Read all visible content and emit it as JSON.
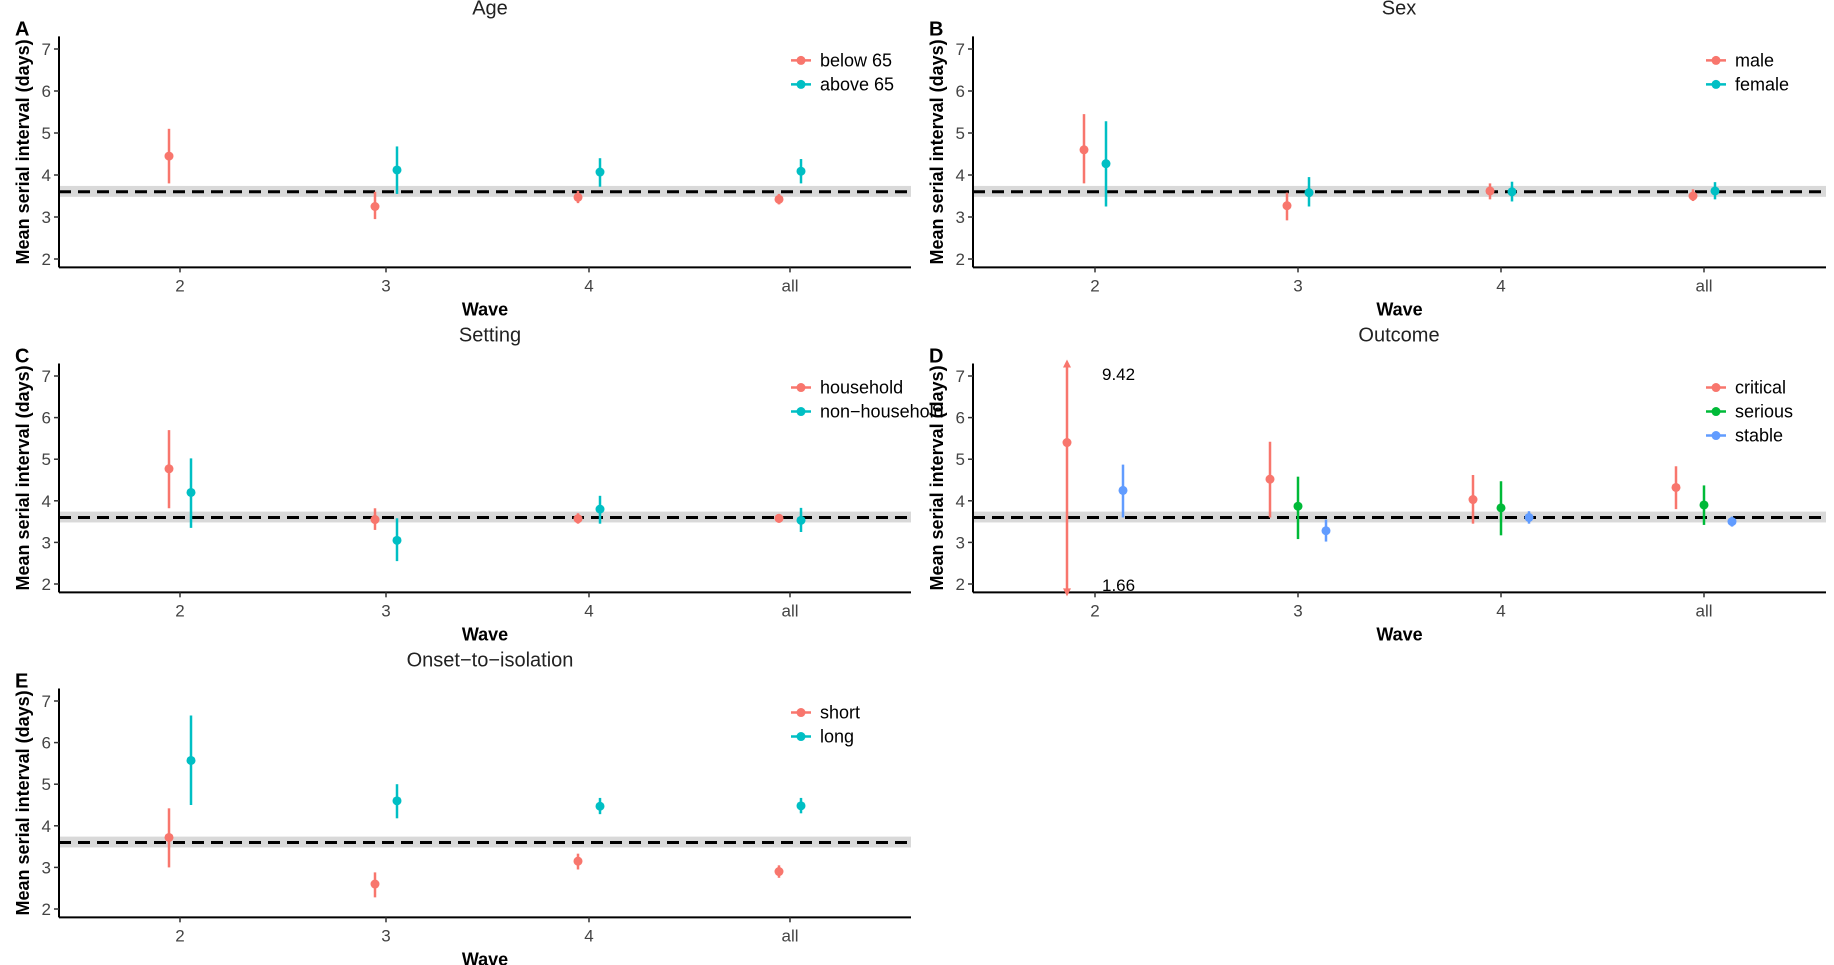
{
  "chart_data": [
    {
      "panel": "A",
      "type": "scatter",
      "title": "Age",
      "xlabel": "Wave",
      "ylabel": "Mean serial interval (days)",
      "categories": [
        "2",
        "3",
        "4",
        "all"
      ],
      "ylim": [
        1.8,
        7.3
      ],
      "yticks": [
        "2",
        "3",
        "4",
        "5",
        "6",
        "7"
      ],
      "reference": {
        "value": 3.6,
        "band": [
          3.48,
          3.74
        ]
      },
      "series": [
        {
          "name": "below 65",
          "color": "#F8766D",
          "values": [
            4.45,
            3.25,
            3.47,
            3.42
          ],
          "lower": [
            3.8,
            2.95,
            3.33,
            3.3
          ],
          "upper": [
            5.1,
            3.6,
            3.62,
            3.55
          ]
        },
        {
          "name": "above 65",
          "color": "#00BFC4",
          "values": [
            null,
            4.12,
            4.07,
            4.09
          ],
          "lower": [
            null,
            3.55,
            3.72,
            3.8
          ],
          "upper": [
            null,
            4.68,
            4.4,
            4.38
          ]
        }
      ],
      "annotations": []
    },
    {
      "panel": "B",
      "type": "scatter",
      "title": "Sex",
      "xlabel": "Wave",
      "ylabel": "Mean serial interval (days)",
      "categories": [
        "2",
        "3",
        "4",
        "all"
      ],
      "ylim": [
        1.8,
        7.3
      ],
      "yticks": [
        "2",
        "3",
        "4",
        "5",
        "6",
        "7"
      ],
      "reference": {
        "value": 3.6,
        "band": [
          3.48,
          3.74
        ]
      },
      "series": [
        {
          "name": "male",
          "color": "#F8766D",
          "values": [
            4.6,
            3.27,
            3.62,
            3.5
          ],
          "lower": [
            3.8,
            2.92,
            3.42,
            3.38
          ],
          "upper": [
            5.45,
            3.58,
            3.8,
            3.66
          ]
        },
        {
          "name": "female",
          "color": "#00BFC4",
          "values": [
            4.27,
            3.58,
            3.6,
            3.62
          ],
          "lower": [
            3.25,
            3.25,
            3.37,
            3.42
          ],
          "upper": [
            5.28,
            3.95,
            3.84,
            3.83
          ]
        }
      ],
      "annotations": []
    },
    {
      "panel": "C",
      "type": "scatter",
      "title": "Setting",
      "xlabel": "Wave",
      "ylabel": "Mean serial interval (days)",
      "categories": [
        "2",
        "3",
        "4",
        "all"
      ],
      "ylim": [
        1.8,
        7.3
      ],
      "yticks": [
        "2",
        "3",
        "4",
        "5",
        "6",
        "7"
      ],
      "reference": {
        "value": 3.6,
        "band": [
          3.48,
          3.74
        ]
      },
      "series": [
        {
          "name": "household",
          "color": "#F8766D",
          "values": [
            4.77,
            3.55,
            3.57,
            3.58
          ],
          "lower": [
            3.82,
            3.3,
            3.45,
            3.47
          ],
          "upper": [
            5.7,
            3.82,
            3.7,
            3.68
          ]
        },
        {
          "name": "non−household",
          "color": "#00BFC4",
          "values": [
            4.2,
            3.05,
            3.8,
            3.53
          ],
          "lower": [
            3.35,
            2.55,
            3.45,
            3.25
          ],
          "upper": [
            5.02,
            3.58,
            4.12,
            3.83
          ]
        }
      ],
      "annotations": []
    },
    {
      "panel": "D",
      "type": "scatter",
      "title": "Outcome",
      "xlabel": "Wave",
      "ylabel": "Mean serial interval (days)",
      "categories": [
        "2",
        "3",
        "4",
        "all"
      ],
      "ylim": [
        1.8,
        7.3
      ],
      "yticks": [
        "2",
        "3",
        "4",
        "5",
        "6",
        "7"
      ],
      "reference": {
        "value": 3.6,
        "band": [
          3.48,
          3.74
        ]
      },
      "series": [
        {
          "name": "critical",
          "color": "#F8766D",
          "values": [
            5.4,
            4.52,
            4.03,
            4.32
          ],
          "lower": [
            1.8,
            3.6,
            3.45,
            3.8
          ],
          "upper": [
            7.3,
            5.42,
            4.62,
            4.83
          ]
        },
        {
          "name": "serious",
          "color": "#00BA38",
          "values": [
            null,
            3.87,
            3.83,
            3.9
          ],
          "lower": [
            null,
            3.08,
            3.17,
            3.42
          ],
          "upper": [
            null,
            4.58,
            4.47,
            4.37
          ]
        },
        {
          "name": "stable",
          "color": "#619CFF",
          "values": [
            4.25,
            3.28,
            3.6,
            3.5
          ],
          "lower": [
            3.6,
            3.02,
            3.45,
            3.38
          ],
          "upper": [
            4.87,
            3.55,
            3.75,
            3.62
          ]
        }
      ],
      "annotations": [
        {
          "text": "9.42",
          "x": "2",
          "y": 7.05
        },
        {
          "text": "1.66",
          "x": "2",
          "y": 1.98
        }
      ]
    },
    {
      "panel": "E",
      "type": "scatter",
      "title": "Onset−to−isolation",
      "xlabel": "Wave",
      "ylabel": "Mean serial interval (days)",
      "categories": [
        "2",
        "3",
        "4",
        "all"
      ],
      "ylim": [
        1.8,
        7.3
      ],
      "yticks": [
        "2",
        "3",
        "4",
        "5",
        "6",
        "7"
      ],
      "reference": {
        "value": 3.6,
        "band": [
          3.48,
          3.74
        ]
      },
      "series": [
        {
          "name": "short",
          "color": "#F8766D",
          "values": [
            3.72,
            2.6,
            3.15,
            2.9
          ],
          "lower": [
            3.0,
            2.28,
            2.95,
            2.75
          ],
          "upper": [
            4.42,
            2.88,
            3.33,
            3.05
          ]
        },
        {
          "name": "long",
          "color": "#00BFC4",
          "values": [
            5.57,
            4.6,
            4.47,
            4.48
          ],
          "lower": [
            4.5,
            4.18,
            4.28,
            4.3
          ],
          "upper": [
            6.65,
            5.0,
            4.67,
            4.67
          ]
        }
      ],
      "annotations": []
    }
  ]
}
